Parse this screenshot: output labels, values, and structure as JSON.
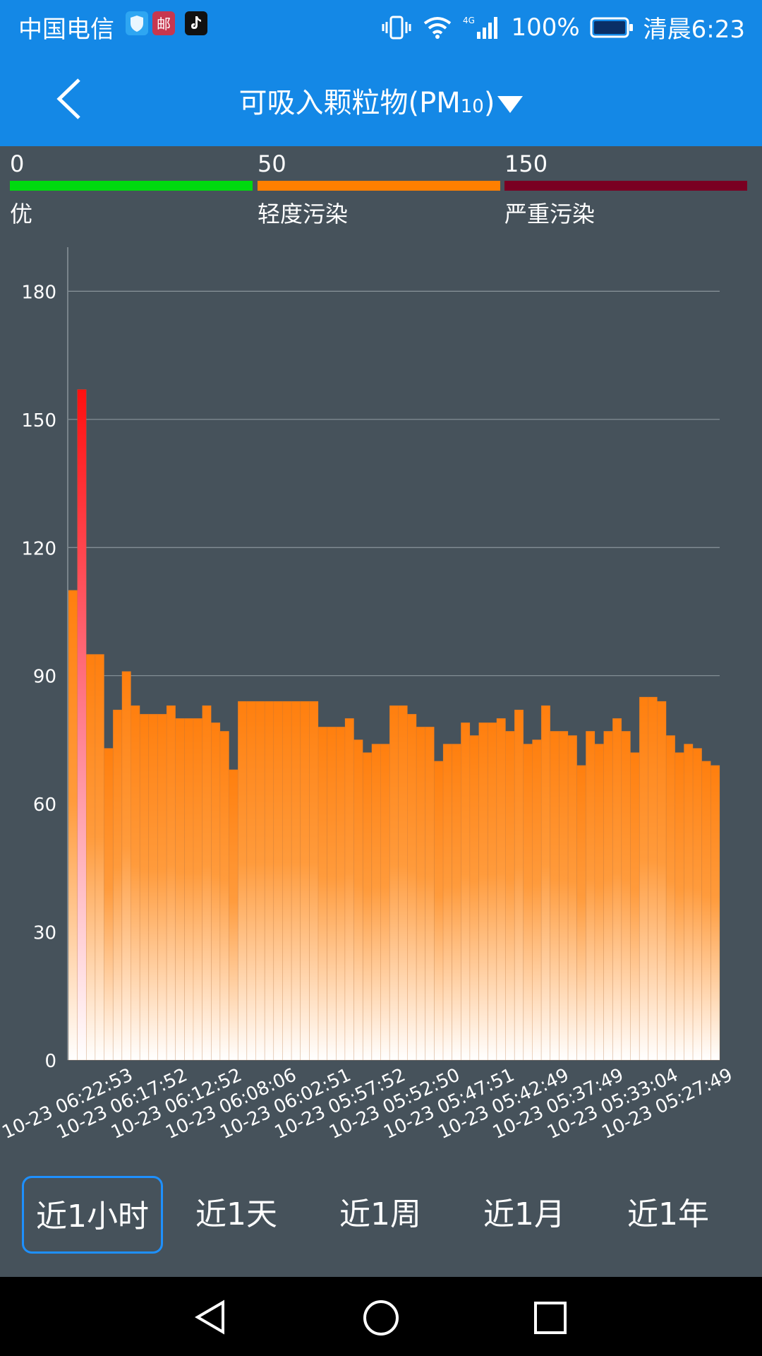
{
  "status": {
    "carrier": "中国电信",
    "right": {
      "battery": "100%",
      "time": "清晨6:23"
    },
    "icons": [
      "shield-icon",
      "mail-app-icon",
      "tiktok-icon",
      "vibrate-icon",
      "wifi-icon",
      "signal-4g-icon",
      "battery-icon"
    ]
  },
  "header": {
    "title": "可吸入颗粒物(PM",
    "sub": "10",
    "close": ")"
  },
  "legend": [
    {
      "value": "0",
      "label": "优",
      "color": "#00d90f"
    },
    {
      "value": "50",
      "label": "轻度污染",
      "color": "#ff7f00"
    },
    {
      "value": "150",
      "label": "严重污染",
      "color": "#7a0022"
    }
  ],
  "chart_data": {
    "type": "bar",
    "yticks": [
      0,
      30,
      60,
      90,
      120,
      150,
      180
    ],
    "ylim": [
      0,
      188
    ],
    "xlabels": [
      "10-23 06:22:53",
      "10-23 06:17:52",
      "10-23 06:12:52",
      "10-23 06:08:06",
      "10-23 06:02:51",
      "10-23 05:57:52",
      "10-23 05:52:50",
      "10-23 05:47:51",
      "10-23 05:42:49",
      "10-23 05:37:49",
      "10-23 05:33:04",
      "10-23 05:27:49"
    ],
    "values": [
      110,
      157,
      95,
      95,
      73,
      82,
      91,
      83,
      81,
      81,
      81,
      83,
      80,
      80,
      80,
      83,
      79,
      77,
      68,
      84,
      84,
      84,
      84,
      84,
      84,
      84,
      84,
      84,
      78,
      78,
      78,
      80,
      75,
      72,
      74,
      74,
      83,
      83,
      81,
      78,
      78,
      70,
      74,
      74,
      79,
      76,
      79,
      79,
      80,
      77,
      82,
      74,
      75,
      83,
      77,
      77,
      76,
      69,
      77,
      74,
      77,
      80,
      77,
      72,
      85,
      85,
      84,
      76,
      72,
      74,
      73,
      70,
      69
    ],
    "colors": {
      "normal": "#ff7f0e",
      "high": "#ff1010",
      "grid": "#8a949b",
      "axis": "#8a949b"
    }
  },
  "tabs": [
    {
      "label": "近1小时",
      "active": true
    },
    {
      "label": "近1天",
      "active": false
    },
    {
      "label": "近1周",
      "active": false
    },
    {
      "label": "近1月",
      "active": false
    },
    {
      "label": "近1年",
      "active": false
    }
  ]
}
